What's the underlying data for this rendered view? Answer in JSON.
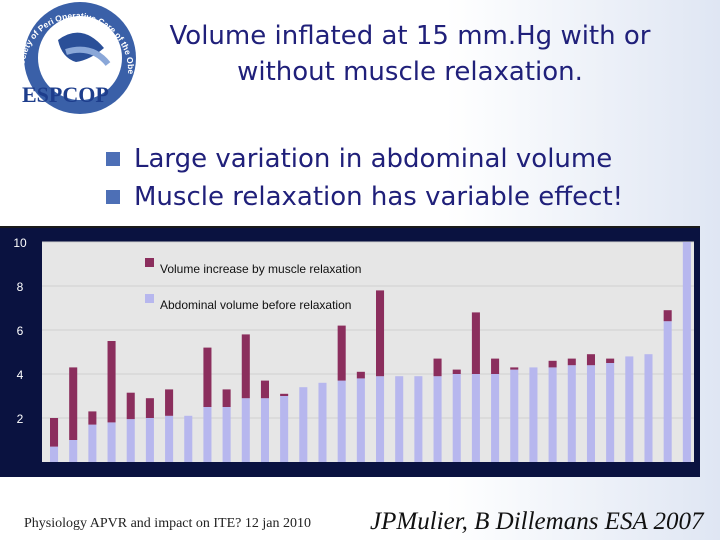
{
  "logo": {
    "name": "ESPCOP",
    "ring_text": "European Society of Peri Operative Care of the Obese Patient"
  },
  "title": {
    "line1": "Volume inflated at 15 mm.Hg with or",
    "line2": "without muscle relaxation."
  },
  "bullets": [
    "Large variation in abdominal volume",
    "Muscle relaxation has variable effect!"
  ],
  "footer": {
    "left": "Physiology APVR and impact on ITE? 12 jan 2010",
    "right": "JPMulier, B Dillemans ESA 2007"
  },
  "colors": {
    "title": "#20207a",
    "bullet_marker": "#4d6fb6",
    "chart_bg": "#0a1240",
    "plot_bg": "#e6e6e6",
    "increase": "#8b2e5d",
    "base": "#b7b7ee"
  },
  "chart_data": {
    "type": "bar",
    "stacked": true,
    "ylim": [
      0,
      10
    ],
    "y_ticks": [
      2,
      4,
      6,
      8,
      10
    ],
    "legend": {
      "increase": "Volume increase by muscle relaxation",
      "base": "Abdominal volume before relaxation",
      "placement": "top-left"
    },
    "series": [
      {
        "name": "Abdominal volume before relaxation",
        "values": [
          0.7,
          1.0,
          1.7,
          1.8,
          1.95,
          2.0,
          2.1,
          2.1,
          2.5,
          2.5,
          2.9,
          2.9,
          3.0,
          3.4,
          3.6,
          3.7,
          3.8,
          3.9,
          3.9,
          3.9,
          3.9,
          4.0,
          4.0,
          4.0,
          4.2,
          4.3,
          4.3,
          4.4,
          4.4,
          4.5,
          4.8,
          4.9,
          6.4,
          10.0
        ]
      },
      {
        "name": "Volume increase by muscle relaxation",
        "values": [
          1.3,
          3.3,
          0.6,
          3.7,
          1.2,
          0.9,
          1.2,
          0.0,
          2.7,
          0.8,
          2.9,
          0.8,
          0.1,
          0.0,
          0.0,
          2.5,
          0.3,
          3.9,
          0.0,
          0.0,
          0.8,
          0.2,
          2.8,
          0.7,
          0.1,
          0.0,
          0.3,
          0.3,
          0.5,
          0.2,
          0.0,
          0.0,
          0.5,
          0.0
        ]
      }
    ]
  }
}
